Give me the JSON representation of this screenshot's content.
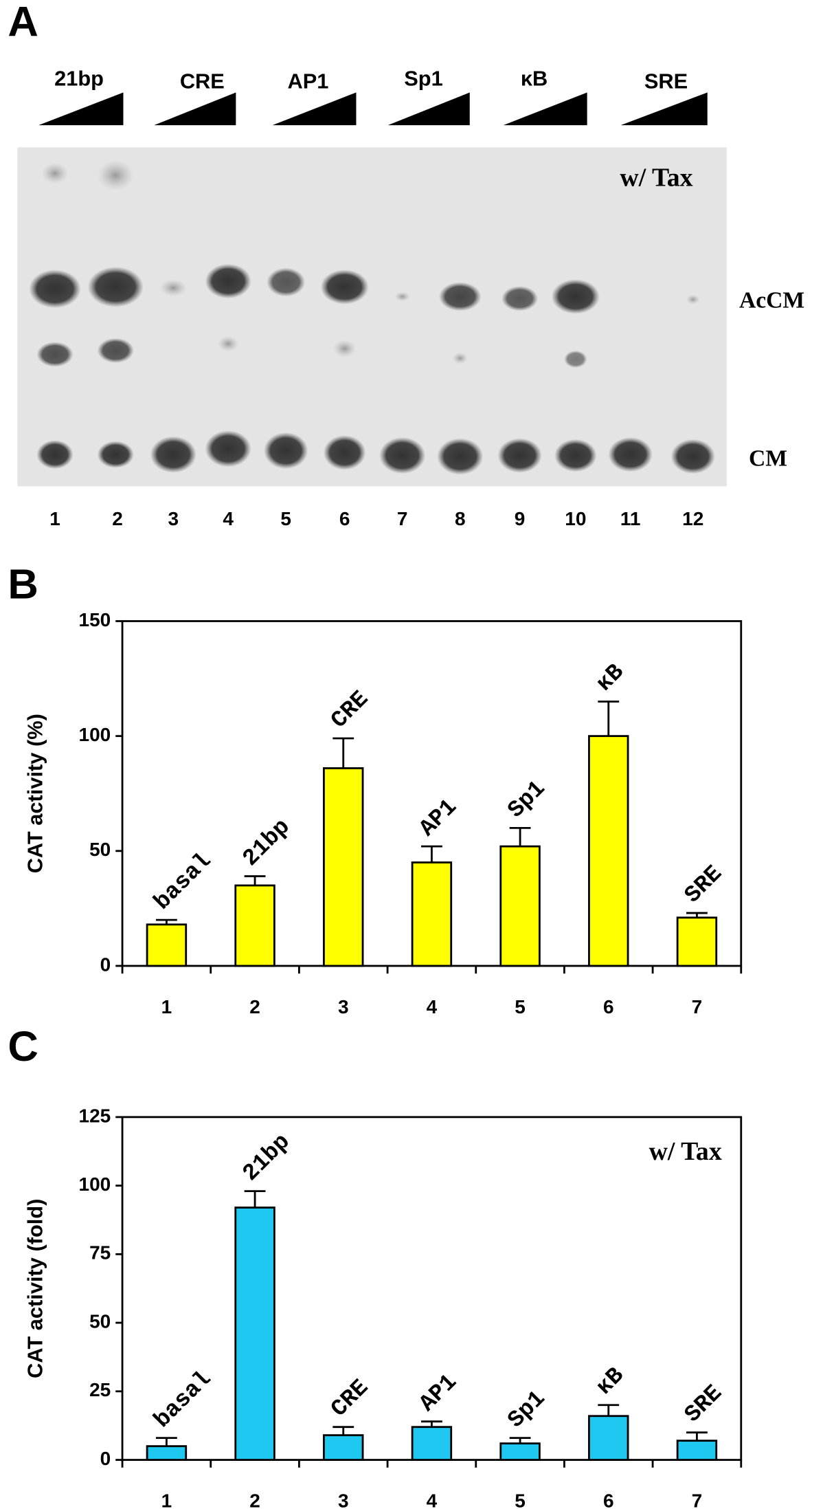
{
  "panel_a": {
    "panel": "A",
    "groups": [
      "21bp",
      "CRE",
      "AP1",
      "Sp1",
      "κB",
      "SRE"
    ],
    "annotation": "w/ Tax",
    "bands": [
      "AcCM",
      "CM"
    ],
    "lanes": [
      "1",
      "2",
      "3",
      "4",
      "5",
      "6",
      "7",
      "8",
      "9",
      "10",
      "11",
      "12"
    ]
  },
  "chart_data": [
    {
      "type": "bar",
      "panel": "B",
      "ylabel": "CAT activity (%)",
      "categories": [
        "1",
        "2",
        "3",
        "4",
        "5",
        "6",
        "7"
      ],
      "values": [
        18,
        35,
        86,
        45,
        52,
        100,
        21
      ],
      "errors": [
        2,
        4,
        13,
        7,
        8,
        15,
        2
      ],
      "bar_labels": [
        "basal",
        "21bp",
        "CRE",
        "AP1",
        "Sp1",
        "κB",
        "SRE"
      ],
      "color": "#ffff00",
      "ylim": [
        0,
        150
      ],
      "yticks": [
        0,
        50,
        100,
        150
      ]
    },
    {
      "type": "bar",
      "panel": "C",
      "ylabel": "CAT activity (fold)",
      "annotation": "w/ Tax",
      "categories": [
        "1",
        "2",
        "3",
        "4",
        "5",
        "6",
        "7"
      ],
      "values": [
        5,
        92,
        9,
        12,
        6,
        16,
        7
      ],
      "errors": [
        3,
        6,
        3,
        2,
        2,
        4,
        3
      ],
      "bar_labels": [
        "basal",
        "21bp",
        "CRE",
        "AP1",
        "Sp1",
        "κB",
        "SRE"
      ],
      "color": "#1ec8f0",
      "ylim": [
        0,
        125
      ],
      "yticks": [
        0,
        25,
        50,
        75,
        100,
        125
      ]
    }
  ]
}
